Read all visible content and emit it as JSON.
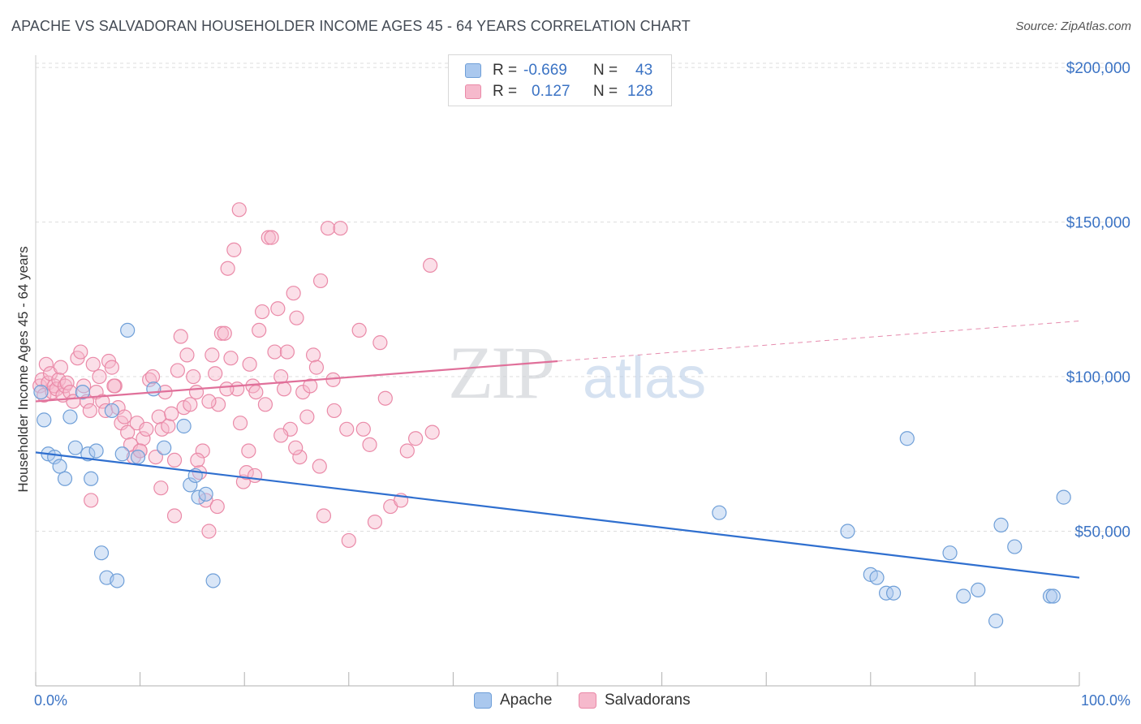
{
  "header": {
    "title": "APACHE VS SALVADORAN HOUSEHOLDER INCOME AGES 45 - 64 YEARS CORRELATION CHART",
    "source": "Source: ZipAtlas.com"
  },
  "watermark": {
    "zip": "ZIP",
    "atlas": "atlas"
  },
  "legend_top": [
    {
      "r_label": "R =",
      "r_value": "-0.669",
      "n_label": "N =",
      "n_value": "43"
    },
    {
      "r_label": "R =",
      "r_value": "0.127",
      "n_label": "N =",
      "n_value": "128"
    }
  ],
  "legend_bottom": [
    {
      "label": "Apache"
    },
    {
      "label": "Salvadorans"
    }
  ],
  "colors": {
    "apache_fill": "#aac8ee",
    "apache_stroke": "#6f9fd8",
    "apache_line": "#2f6fcf",
    "salv_fill": "#f6b9cc",
    "salv_stroke": "#ea8aa8",
    "salv_line": "#e0709a",
    "tick_label": "#3b73c4",
    "grid": "#dddddd"
  },
  "chart_data": {
    "type": "scatter",
    "title": "APACHE VS SALVADORAN HOUSEHOLDER INCOME AGES 45 - 64 YEARS CORRELATION CHART",
    "xlabel": "",
    "ylabel": "Householder Income Ages 45 - 64 years",
    "xlim": [
      0,
      100
    ],
    "ylim": [
      0,
      210000
    ],
    "x_tick_labels": [
      "0.0%",
      "100.0%"
    ],
    "y_ticks": [
      50000,
      100000,
      150000,
      200000
    ],
    "y_tick_labels": [
      "$50,000",
      "$100,000",
      "$150,000",
      "$200,000"
    ],
    "grid": true,
    "legend_position": "top-center",
    "series": [
      {
        "name": "Apache",
        "points": [
          [
            0.5,
            95000
          ],
          [
            0.8,
            86000
          ],
          [
            1.2,
            75000
          ],
          [
            1.8,
            74000
          ],
          [
            2.3,
            71000
          ],
          [
            2.8,
            67000
          ],
          [
            3.3,
            87000
          ],
          [
            3.8,
            77000
          ],
          [
            4.5,
            95000
          ],
          [
            5.0,
            75000
          ],
          [
            5.3,
            67000
          ],
          [
            5.8,
            76000
          ],
          [
            6.3,
            43000
          ],
          [
            6.8,
            35000
          ],
          [
            7.3,
            89000
          ],
          [
            7.8,
            34000
          ],
          [
            8.3,
            75000
          ],
          [
            8.8,
            115000
          ],
          [
            9.8,
            74000
          ],
          [
            11.3,
            96000
          ],
          [
            12.3,
            77000
          ],
          [
            14.2,
            84000
          ],
          [
            14.8,
            65000
          ],
          [
            15.3,
            68000
          ],
          [
            15.6,
            61000
          ],
          [
            16.3,
            62000
          ],
          [
            17.0,
            34000
          ],
          [
            65.5,
            56000
          ],
          [
            77.8,
            50000
          ],
          [
            80.0,
            36000
          ],
          [
            80.6,
            35000
          ],
          [
            81.5,
            30000
          ],
          [
            82.2,
            30000
          ],
          [
            83.5,
            80000
          ],
          [
            87.6,
            43000
          ],
          [
            88.9,
            29000
          ],
          [
            90.3,
            31000
          ],
          [
            92.0,
            21000
          ],
          [
            92.5,
            52000
          ],
          [
            93.8,
            45000
          ],
          [
            97.2,
            29000
          ],
          [
            98.5,
            61000
          ],
          [
            97.5,
            29000
          ]
        ],
        "trend": {
          "x": [
            0,
            100
          ],
          "y": [
            75500,
            35000
          ]
        }
      },
      {
        "name": "Salvadorans",
        "points": [
          [
            0.4,
            97000
          ],
          [
            0.6,
            99000
          ],
          [
            0.8,
            94000
          ],
          [
            1.0,
            104000
          ],
          [
            1.2,
            98000
          ],
          [
            1.4,
            101000
          ],
          [
            1.6,
            95000
          ],
          [
            1.8,
            97000
          ],
          [
            2.0,
            96000
          ],
          [
            2.2,
            99000
          ],
          [
            2.4,
            103000
          ],
          [
            2.6,
            94000
          ],
          [
            2.8,
            97000
          ],
          [
            3.0,
            98000
          ],
          [
            3.3,
            95000
          ],
          [
            3.6,
            92000
          ],
          [
            4.0,
            106000
          ],
          [
            4.3,
            108000
          ],
          [
            4.6,
            97000
          ],
          [
            4.9,
            92000
          ],
          [
            5.2,
            89000
          ],
          [
            5.5,
            104000
          ],
          [
            5.8,
            95000
          ],
          [
            6.1,
            100000
          ],
          [
            6.4,
            92000
          ],
          [
            6.7,
            89000
          ],
          [
            7.0,
            105000
          ],
          [
            7.3,
            103000
          ],
          [
            7.6,
            97000
          ],
          [
            7.9,
            90000
          ],
          [
            8.2,
            85000
          ],
          [
            8.5,
            87000
          ],
          [
            8.8,
            82000
          ],
          [
            9.1,
            78000
          ],
          [
            9.4,
            74000
          ],
          [
            9.7,
            85000
          ],
          [
            10.0,
            76000
          ],
          [
            10.3,
            80000
          ],
          [
            10.6,
            83000
          ],
          [
            10.9,
            99000
          ],
          [
            11.2,
            100000
          ],
          [
            11.5,
            74000
          ],
          [
            11.8,
            87000
          ],
          [
            12.1,
            83000
          ],
          [
            12.4,
            95000
          ],
          [
            12.7,
            84000
          ],
          [
            13.0,
            88000
          ],
          [
            13.3,
            73000
          ],
          [
            13.6,
            102000
          ],
          [
            13.9,
            113000
          ],
          [
            14.2,
            90000
          ],
          [
            14.5,
            107000
          ],
          [
            14.8,
            91000
          ],
          [
            15.1,
            100000
          ],
          [
            15.4,
            95000
          ],
          [
            15.7,
            69000
          ],
          [
            16.0,
            76000
          ],
          [
            16.3,
            60000
          ],
          [
            16.6,
            50000
          ],
          [
            16.9,
            107000
          ],
          [
            17.2,
            101000
          ],
          [
            17.5,
            91000
          ],
          [
            17.8,
            114000
          ],
          [
            18.1,
            114000
          ],
          [
            18.4,
            135000
          ],
          [
            18.7,
            106000
          ],
          [
            19.0,
            141000
          ],
          [
            19.3,
            96000
          ],
          [
            19.6,
            85000
          ],
          [
            19.9,
            66000
          ],
          [
            20.2,
            69000
          ],
          [
            20.5,
            104000
          ],
          [
            20.8,
            97000
          ],
          [
            21.1,
            95000
          ],
          [
            21.4,
            115000
          ],
          [
            21.7,
            121000
          ],
          [
            22.0,
            91000
          ],
          [
            22.3,
            145000
          ],
          [
            22.6,
            145000
          ],
          [
            22.9,
            108000
          ],
          [
            23.2,
            122000
          ],
          [
            23.5,
            100000
          ],
          [
            23.8,
            96000
          ],
          [
            24.1,
            108000
          ],
          [
            24.4,
            83000
          ],
          [
            24.7,
            127000
          ],
          [
            25.0,
            119000
          ],
          [
            25.3,
            74000
          ],
          [
            25.6,
            95000
          ],
          [
            26.0,
            87000
          ],
          [
            26.3,
            97000
          ],
          [
            26.6,
            107000
          ],
          [
            26.9,
            103000
          ],
          [
            27.3,
            131000
          ],
          [
            27.6,
            55000
          ],
          [
            28.0,
            148000
          ],
          [
            28.5,
            99000
          ],
          [
            29.2,
            148000
          ],
          [
            30.0,
            47000
          ],
          [
            31.0,
            115000
          ],
          [
            32.5,
            53000
          ],
          [
            33.0,
            111000
          ],
          [
            34.0,
            58000
          ],
          [
            35.0,
            60000
          ],
          [
            37.8,
            136000
          ],
          [
            5.3,
            60000
          ],
          [
            7.5,
            97000
          ],
          [
            10.0,
            76000
          ],
          [
            12.0,
            64000
          ],
          [
            13.3,
            55000
          ],
          [
            15.5,
            73000
          ],
          [
            17.4,
            58000
          ],
          [
            18.3,
            96000
          ],
          [
            19.5,
            154000
          ],
          [
            21.0,
            68000
          ],
          [
            23.5,
            81000
          ],
          [
            24.9,
            77000
          ],
          [
            27.2,
            71000
          ],
          [
            28.6,
            89000
          ],
          [
            29.8,
            83000
          ],
          [
            31.4,
            83000
          ],
          [
            32.0,
            78000
          ],
          [
            33.5,
            93000
          ],
          [
            35.6,
            76000
          ],
          [
            36.4,
            80000
          ],
          [
            38.0,
            82000
          ],
          [
            20.4,
            76000
          ],
          [
            16.6,
            92000
          ]
        ],
        "trend": {
          "x": [
            0,
            50
          ],
          "y": [
            92000,
            105000
          ]
        },
        "trend_extension": {
          "x": [
            50,
            100
          ],
          "y": [
            105000,
            118000
          ]
        }
      }
    ]
  }
}
